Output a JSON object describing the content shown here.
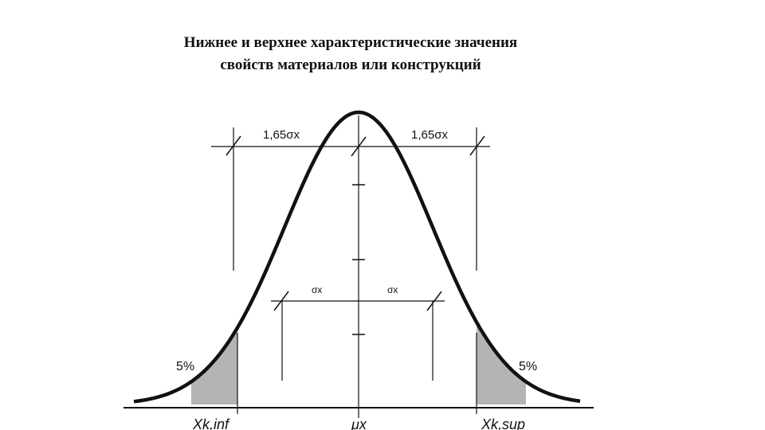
{
  "title": {
    "line1": "Нижнее и верхнее характеристические значения",
    "line2": "свойств материалов или конструкций"
  },
  "diagram": {
    "dim_upper_left": "1,65σx",
    "dim_upper_right": "1,65σx",
    "dim_lower_left": "σx",
    "dim_lower_right": "σx",
    "tail_left_percent": "5%",
    "tail_right_percent": "5%",
    "axis_left_label": "Xk,inf",
    "axis_center_label": "μx",
    "axis_right_label": "Xk,sup",
    "fill_color": "#b4b4b4",
    "line_color": "#111111"
  }
}
